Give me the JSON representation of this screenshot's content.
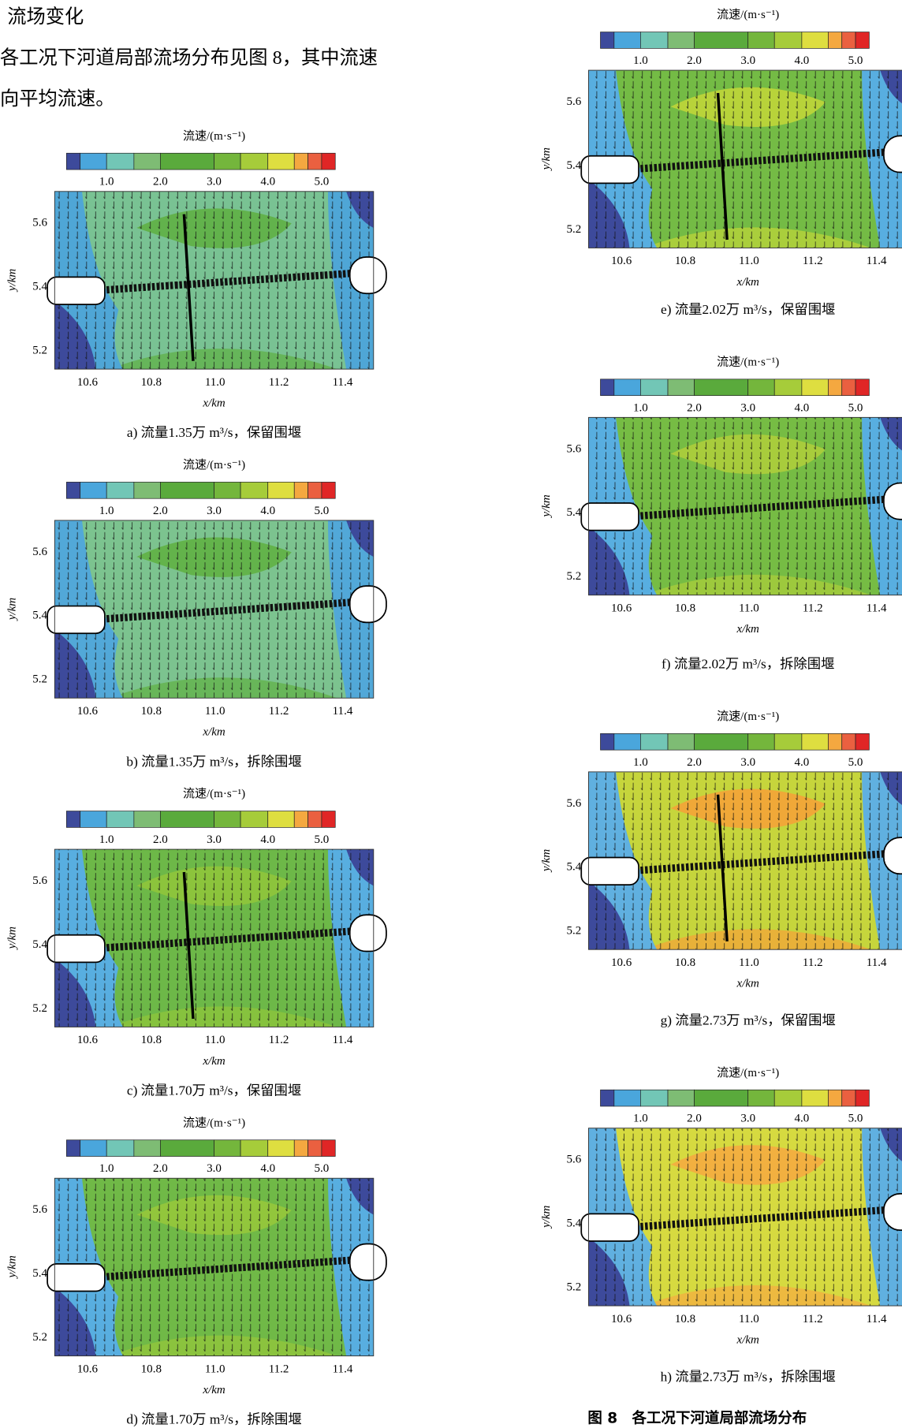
{
  "text": {
    "heading": "流场变化",
    "lines": [
      "各工况下河道局部流场分布见图 8，其中流速",
      "向平均流速。"
    ]
  },
  "figure": {
    "colorbar_title": "流速/(m·s⁻¹)",
    "colorbar_ticks": [
      "1.0",
      "2.0",
      "3.0",
      "4.0",
      "5.0"
    ],
    "y_ticks": [
      "5.6",
      "5.4",
      "5.2"
    ],
    "x_ticks": [
      "10.6",
      "10.8",
      "11.0",
      "11.2",
      "11.4"
    ],
    "y_label": "y/km",
    "x_label": "x/km",
    "panels": [
      {
        "caption": "a) 流量1.35万 m³/s，保留围堰"
      },
      {
        "caption": "b) 流量1.35万 m³/s，拆除围堰"
      },
      {
        "caption": "c) 流量1.70万 m³/s，保留围堰"
      },
      {
        "caption": "d) 流量1.70万 m³/s，拆除围堰"
      },
      {
        "caption": "e) 流量2.02万 m³/s，保留围堰"
      },
      {
        "caption": "f) 流量2.02万 m³/s，拆除围堰"
      },
      {
        "caption": "g) 流量2.73万 m³/s，保留围堰"
      },
      {
        "caption": "h) 流量2.73万 m³/s，拆除围堰"
      }
    ],
    "caption": "图 8　各工况下河道局部流场分布"
  }
}
